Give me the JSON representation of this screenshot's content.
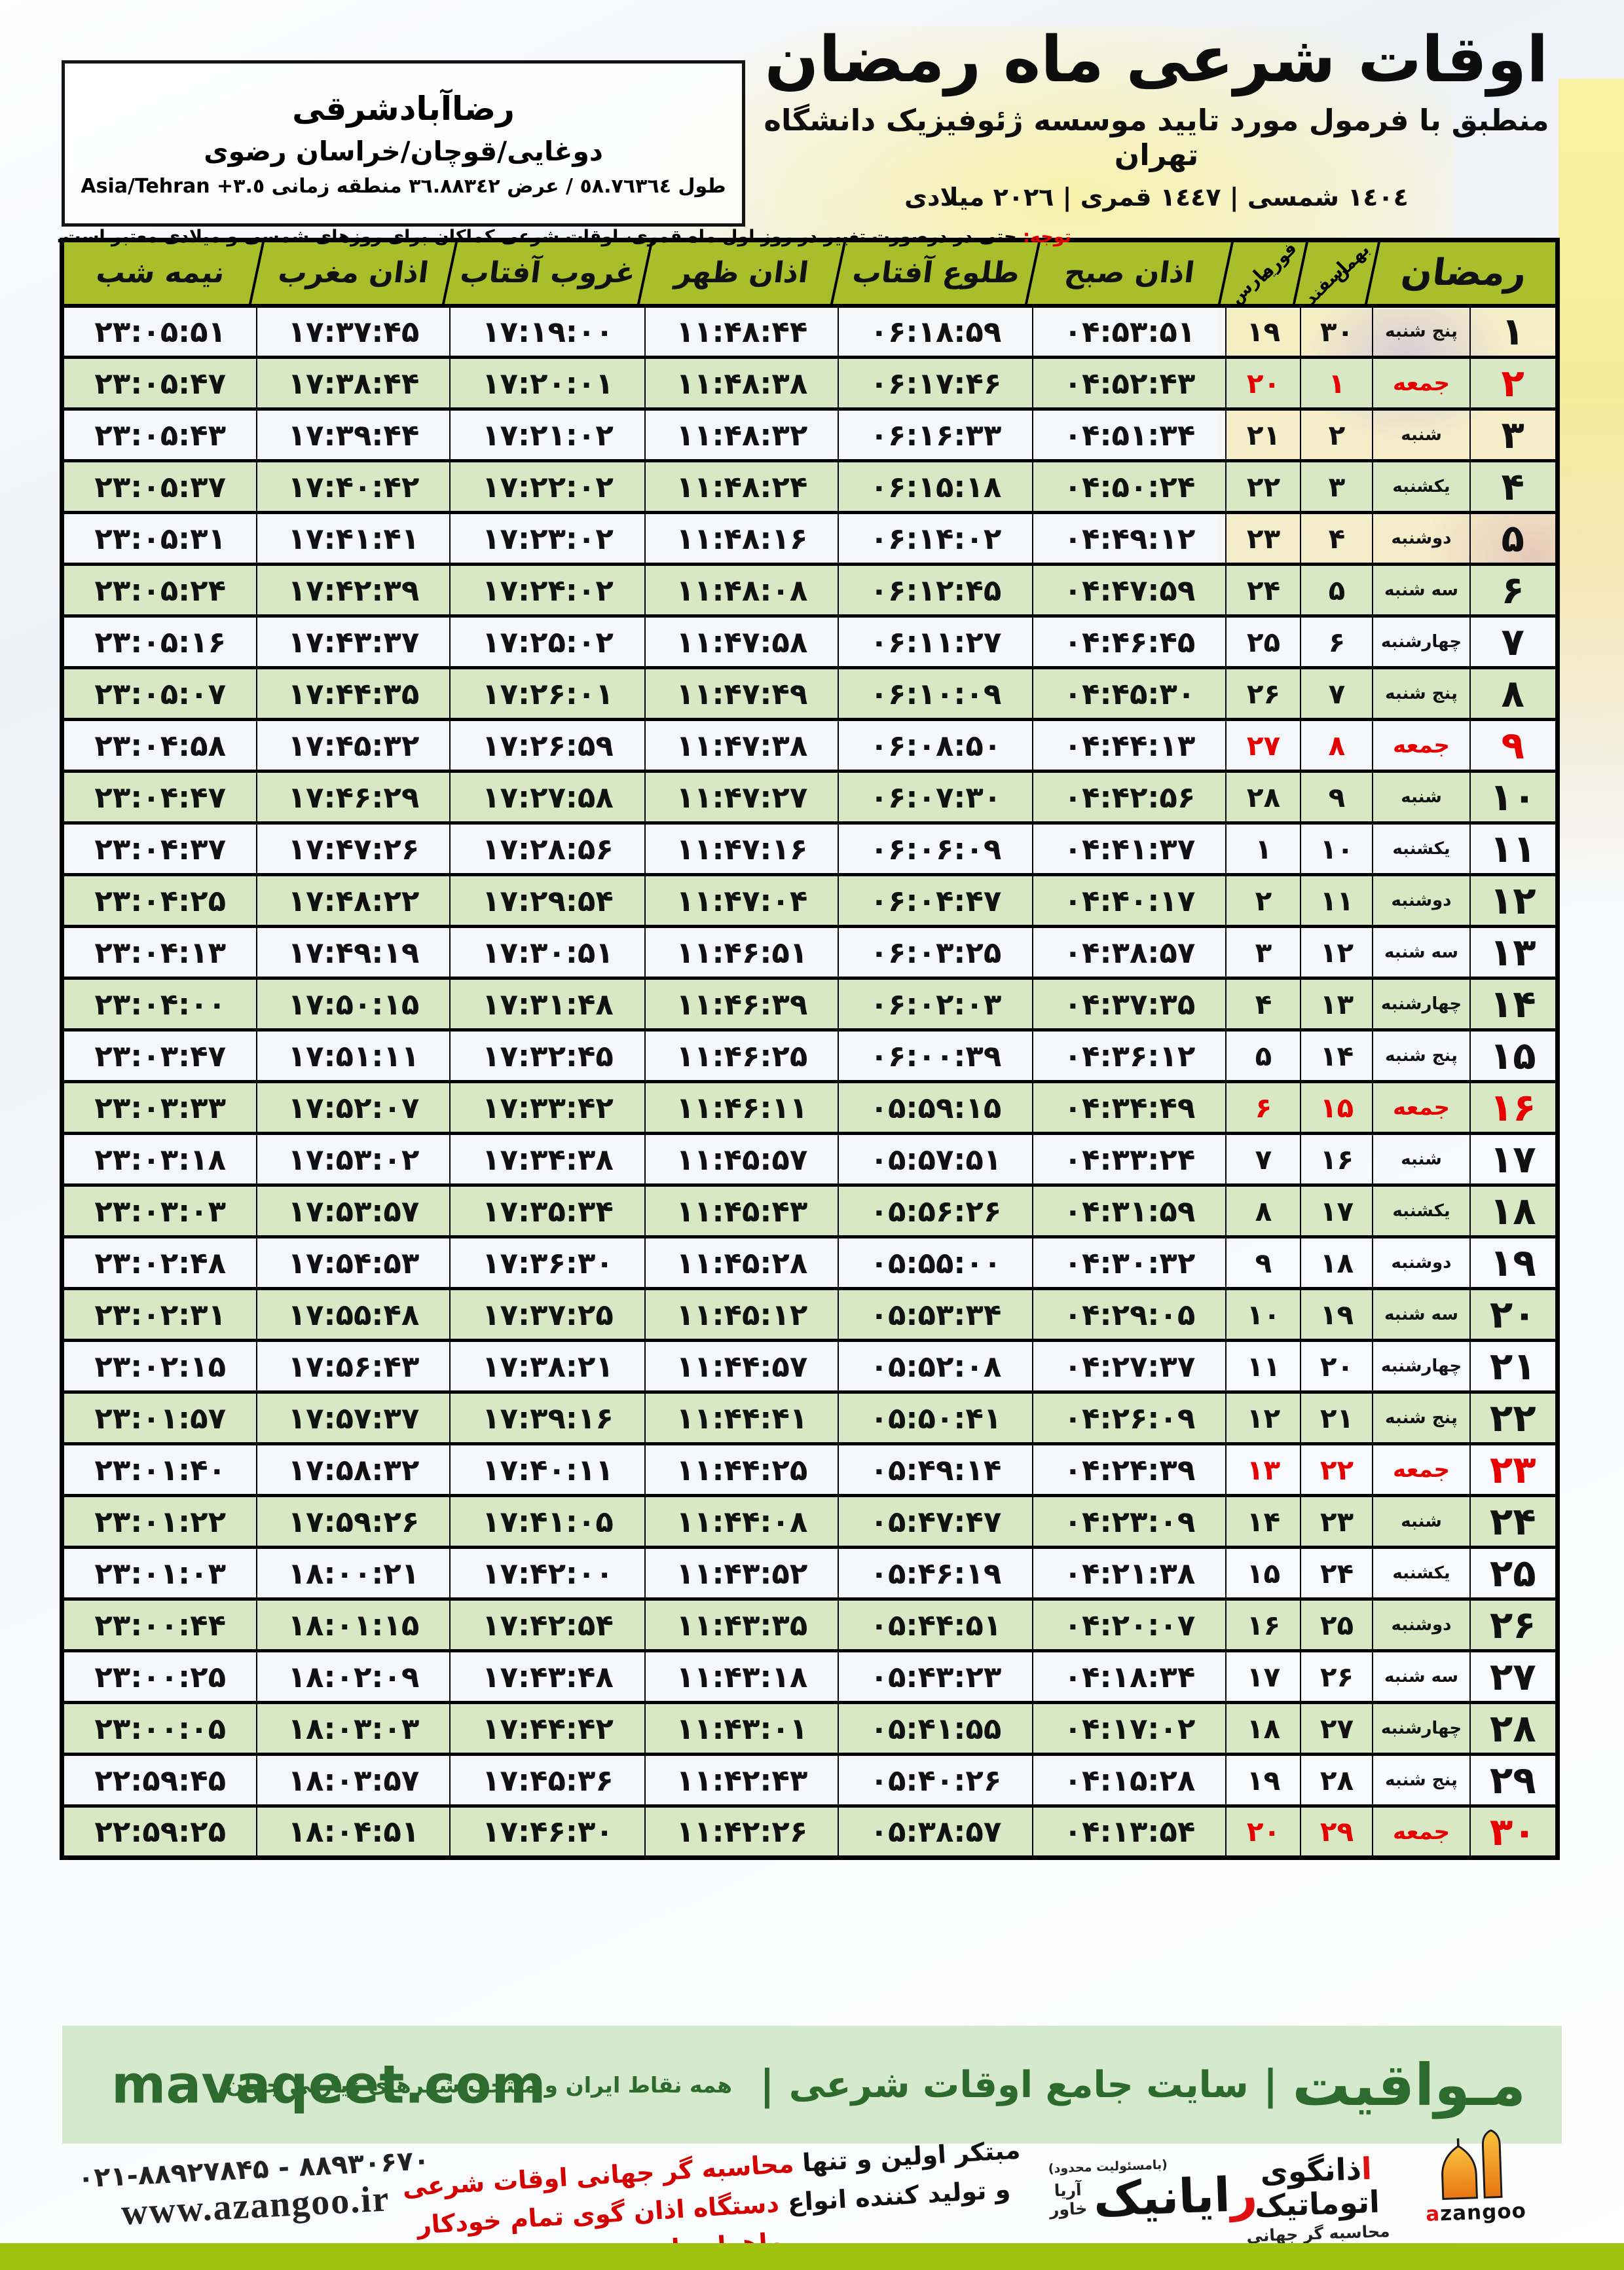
{
  "header": {
    "title": "اوقات شرعی ماه رمضان",
    "subtitle": "منطبق با فرمول مورد تایید موسسه ژئوفیزیک دانشگاه تهران",
    "year_line": "١٤٠٤ شمسی | ١٤٤٧ قمری | ٢٠٢٦ میلادی"
  },
  "location": {
    "name": "رضاآبادشرقی",
    "region": "دوغایی/قوچان/خراسان رضوی",
    "coords": "طول ٥٨.٧٦٣٦٤ / عرض ٣٦.٨٨٣٤٢ منطقه زمانی",
    "timezone": "Asia/Tehran +٣.٥"
  },
  "notice": {
    "label": "توجه:",
    "text": " حتی در درصورت تغییر در روز اول ماه قمری، اوقات شرعی کماکان برای روزهای شمسی و میلادی معتبر است."
  },
  "table": {
    "col_ramadan": "رمضان",
    "col_solar": {
      "top": "بهمن",
      "bottom": "اسفند"
    },
    "col_greg": {
      "top": "فوریه",
      "bottom": "مارس"
    },
    "col_fajr": "اذان صبح",
    "col_sunrise": "طلوع آفتاب",
    "col_dhuhr": "اذان ظهر",
    "col_sunset": "غروب آفتاب",
    "col_maghrib": "اذان مغرب",
    "col_midnight": "نیمه شب",
    "rows": [
      {
        "d": "۱",
        "w": "پنج شنبه",
        "e": "۳۰",
        "m": "۱۹",
        "fajr": "۰۴:۵۳:۵۱",
        "rise": "۰۶:۱۸:۵۹",
        "noon": "۱۱:۴۸:۴۴",
        "set": "۱۷:۱۹:۰۰",
        "magh": "۱۷:۳۷:۴۵",
        "mid": "۲۳:۰۵:۵۱",
        "fri": false
      },
      {
        "d": "۲",
        "w": "جمعه",
        "e": "۱",
        "m": "۲۰",
        "fajr": "۰۴:۵۲:۴۳",
        "rise": "۰۶:۱۷:۴۶",
        "noon": "۱۱:۴۸:۳۸",
        "set": "۱۷:۲۰:۰۱",
        "magh": "۱۷:۳۸:۴۴",
        "mid": "۲۳:۰۵:۴۷",
        "fri": true
      },
      {
        "d": "۳",
        "w": "شنبه",
        "e": "۲",
        "m": "۲۱",
        "fajr": "۰۴:۵۱:۳۴",
        "rise": "۰۶:۱۶:۳۳",
        "noon": "۱۱:۴۸:۳۲",
        "set": "۱۷:۲۱:۰۲",
        "magh": "۱۷:۳۹:۴۴",
        "mid": "۲۳:۰۵:۴۳",
        "fri": false
      },
      {
        "d": "۴",
        "w": "یکشنبه",
        "e": "۳",
        "m": "۲۲",
        "fajr": "۰۴:۵۰:۲۴",
        "rise": "۰۶:۱۵:۱۸",
        "noon": "۱۱:۴۸:۲۴",
        "set": "۱۷:۲۲:۰۲",
        "magh": "۱۷:۴۰:۴۲",
        "mid": "۲۳:۰۵:۳۷",
        "fri": false
      },
      {
        "d": "۵",
        "w": "دوشنبه",
        "e": "۴",
        "m": "۲۳",
        "fajr": "۰۴:۴۹:۱۲",
        "rise": "۰۶:۱۴:۰۲",
        "noon": "۱۱:۴۸:۱۶",
        "set": "۱۷:۲۳:۰۲",
        "magh": "۱۷:۴۱:۴۱",
        "mid": "۲۳:۰۵:۳۱",
        "fri": false
      },
      {
        "d": "۶",
        "w": "سه شنبه",
        "e": "۵",
        "m": "۲۴",
        "fajr": "۰۴:۴۷:۵۹",
        "rise": "۰۶:۱۲:۴۵",
        "noon": "۱۱:۴۸:۰۸",
        "set": "۱۷:۲۴:۰۲",
        "magh": "۱۷:۴۲:۳۹",
        "mid": "۲۳:۰۵:۲۴",
        "fri": false
      },
      {
        "d": "۷",
        "w": "چهارشنبه",
        "e": "۶",
        "m": "۲۵",
        "fajr": "۰۴:۴۶:۴۵",
        "rise": "۰۶:۱۱:۲۷",
        "noon": "۱۱:۴۷:۵۸",
        "set": "۱۷:۲۵:۰۲",
        "magh": "۱۷:۴۳:۳۷",
        "mid": "۲۳:۰۵:۱۶",
        "fri": false
      },
      {
        "d": "۸",
        "w": "پنج شنبه",
        "e": "۷",
        "m": "۲۶",
        "fajr": "۰۴:۴۵:۳۰",
        "rise": "۰۶:۱۰:۰۹",
        "noon": "۱۱:۴۷:۴۹",
        "set": "۱۷:۲۶:۰۱",
        "magh": "۱۷:۴۴:۳۵",
        "mid": "۲۳:۰۵:۰۷",
        "fri": false
      },
      {
        "d": "۹",
        "w": "جمعه",
        "e": "۸",
        "m": "۲۷",
        "fajr": "۰۴:۴۴:۱۳",
        "rise": "۰۶:۰۸:۵۰",
        "noon": "۱۱:۴۷:۳۸",
        "set": "۱۷:۲۶:۵۹",
        "magh": "۱۷:۴۵:۳۲",
        "mid": "۲۳:۰۴:۵۸",
        "fri": true
      },
      {
        "d": "۱۰",
        "w": "شنبه",
        "e": "۹",
        "m": "۲۸",
        "fajr": "۰۴:۴۲:۵۶",
        "rise": "۰۶:۰۷:۳۰",
        "noon": "۱۱:۴۷:۲۷",
        "set": "۱۷:۲۷:۵۸",
        "magh": "۱۷:۴۶:۲۹",
        "mid": "۲۳:۰۴:۴۷",
        "fri": false
      },
      {
        "d": "۱۱",
        "w": "یکشنبه",
        "e": "۱۰",
        "m": "۱",
        "fajr": "۰۴:۴۱:۳۷",
        "rise": "۰۶:۰۶:۰۹",
        "noon": "۱۱:۴۷:۱۶",
        "set": "۱۷:۲۸:۵۶",
        "magh": "۱۷:۴۷:۲۶",
        "mid": "۲۳:۰۴:۳۷",
        "fri": false
      },
      {
        "d": "۱۲",
        "w": "دوشنبه",
        "e": "۱۱",
        "m": "۲",
        "fajr": "۰۴:۴۰:۱۷",
        "rise": "۰۶:۰۴:۴۷",
        "noon": "۱۱:۴۷:۰۴",
        "set": "۱۷:۲۹:۵۴",
        "magh": "۱۷:۴۸:۲۲",
        "mid": "۲۳:۰۴:۲۵",
        "fri": false
      },
      {
        "d": "۱۳",
        "w": "سه شنبه",
        "e": "۱۲",
        "m": "۳",
        "fajr": "۰۴:۳۸:۵۷",
        "rise": "۰۶:۰۳:۲۵",
        "noon": "۱۱:۴۶:۵۱",
        "set": "۱۷:۳۰:۵۱",
        "magh": "۱۷:۴۹:۱۹",
        "mid": "۲۳:۰۴:۱۳",
        "fri": false
      },
      {
        "d": "۱۴",
        "w": "چهارشنبه",
        "e": "۱۳",
        "m": "۴",
        "fajr": "۰۴:۳۷:۳۵",
        "rise": "۰۶:۰۲:۰۳",
        "noon": "۱۱:۴۶:۳۹",
        "set": "۱۷:۳۱:۴۸",
        "magh": "۱۷:۵۰:۱۵",
        "mid": "۲۳:۰۴:۰۰",
        "fri": false
      },
      {
        "d": "۱۵",
        "w": "پنج شنبه",
        "e": "۱۴",
        "m": "۵",
        "fajr": "۰۴:۳۶:۱۲",
        "rise": "۰۶:۰۰:۳۹",
        "noon": "۱۱:۴۶:۲۵",
        "set": "۱۷:۳۲:۴۵",
        "magh": "۱۷:۵۱:۱۱",
        "mid": "۲۳:۰۳:۴۷",
        "fri": false
      },
      {
        "d": "۱۶",
        "w": "جمعه",
        "e": "۱۵",
        "m": "۶",
        "fajr": "۰۴:۳۴:۴۹",
        "rise": "۰۵:۵۹:۱۵",
        "noon": "۱۱:۴۶:۱۱",
        "set": "۱۷:۳۳:۴۲",
        "magh": "۱۷:۵۲:۰۷",
        "mid": "۲۳:۰۳:۳۳",
        "fri": true
      },
      {
        "d": "۱۷",
        "w": "شنبه",
        "e": "۱۶",
        "m": "۷",
        "fajr": "۰۴:۳۳:۲۴",
        "rise": "۰۵:۵۷:۵۱",
        "noon": "۱۱:۴۵:۵۷",
        "set": "۱۷:۳۴:۳۸",
        "magh": "۱۷:۵۳:۰۲",
        "mid": "۲۳:۰۳:۱۸",
        "fri": false
      },
      {
        "d": "۱۸",
        "w": "یکشنبه",
        "e": "۱۷",
        "m": "۸",
        "fajr": "۰۴:۳۱:۵۹",
        "rise": "۰۵:۵۶:۲۶",
        "noon": "۱۱:۴۵:۴۳",
        "set": "۱۷:۳۵:۳۴",
        "magh": "۱۷:۵۳:۵۷",
        "mid": "۲۳:۰۳:۰۳",
        "fri": false
      },
      {
        "d": "۱۹",
        "w": "دوشنبه",
        "e": "۱۸",
        "m": "۹",
        "fajr": "۰۴:۳۰:۳۲",
        "rise": "۰۵:۵۵:۰۰",
        "noon": "۱۱:۴۵:۲۸",
        "set": "۱۷:۳۶:۳۰",
        "magh": "۱۷:۵۴:۵۳",
        "mid": "۲۳:۰۲:۴۸",
        "fri": false
      },
      {
        "d": "۲۰",
        "w": "سه شنبه",
        "e": "۱۹",
        "m": "۱۰",
        "fajr": "۰۴:۲۹:۰۵",
        "rise": "۰۵:۵۳:۳۴",
        "noon": "۱۱:۴۵:۱۲",
        "set": "۱۷:۳۷:۲۵",
        "magh": "۱۷:۵۵:۴۸",
        "mid": "۲۳:۰۲:۳۱",
        "fri": false
      },
      {
        "d": "۲۱",
        "w": "چهارشنبه",
        "e": "۲۰",
        "m": "۱۱",
        "fajr": "۰۴:۲۷:۳۷",
        "rise": "۰۵:۵۲:۰۸",
        "noon": "۱۱:۴۴:۵۷",
        "set": "۱۷:۳۸:۲۱",
        "magh": "۱۷:۵۶:۴۳",
        "mid": "۲۳:۰۲:۱۵",
        "fri": false
      },
      {
        "d": "۲۲",
        "w": "پنج شنبه",
        "e": "۲۱",
        "m": "۱۲",
        "fajr": "۰۴:۲۶:۰۹",
        "rise": "۰۵:۵۰:۴۱",
        "noon": "۱۱:۴۴:۴۱",
        "set": "۱۷:۳۹:۱۶",
        "magh": "۱۷:۵۷:۳۷",
        "mid": "۲۳:۰۱:۵۷",
        "fri": false
      },
      {
        "d": "۲۳",
        "w": "جمعه",
        "e": "۲۲",
        "m": "۱۳",
        "fajr": "۰۴:۲۴:۳۹",
        "rise": "۰۵:۴۹:۱۴",
        "noon": "۱۱:۴۴:۲۵",
        "set": "۱۷:۴۰:۱۱",
        "magh": "۱۷:۵۸:۳۲",
        "mid": "۲۳:۰۱:۴۰",
        "fri": true
      },
      {
        "d": "۲۴",
        "w": "شنبه",
        "e": "۲۳",
        "m": "۱۴",
        "fajr": "۰۴:۲۳:۰۹",
        "rise": "۰۵:۴۷:۴۷",
        "noon": "۱۱:۴۴:۰۸",
        "set": "۱۷:۴۱:۰۵",
        "magh": "۱۷:۵۹:۲۶",
        "mid": "۲۳:۰۱:۲۲",
        "fri": false
      },
      {
        "d": "۲۵",
        "w": "یکشنبه",
        "e": "۲۴",
        "m": "۱۵",
        "fajr": "۰۴:۲۱:۳۸",
        "rise": "۰۵:۴۶:۱۹",
        "noon": "۱۱:۴۳:۵۲",
        "set": "۱۷:۴۲:۰۰",
        "magh": "۱۸:۰۰:۲۱",
        "mid": "۲۳:۰۱:۰۳",
        "fri": false
      },
      {
        "d": "۲۶",
        "w": "دوشنبه",
        "e": "۲۵",
        "m": "۱۶",
        "fajr": "۰۴:۲۰:۰۷",
        "rise": "۰۵:۴۴:۵۱",
        "noon": "۱۱:۴۳:۳۵",
        "set": "۱۷:۴۲:۵۴",
        "magh": "۱۸:۰۱:۱۵",
        "mid": "۲۳:۰۰:۴۴",
        "fri": false
      },
      {
        "d": "۲۷",
        "w": "سه شنبه",
        "e": "۲۶",
        "m": "۱۷",
        "fajr": "۰۴:۱۸:۳۴",
        "rise": "۰۵:۴۳:۲۳",
        "noon": "۱۱:۴۳:۱۸",
        "set": "۱۷:۴۳:۴۸",
        "magh": "۱۸:۰۲:۰۹",
        "mid": "۲۳:۰۰:۲۵",
        "fri": false
      },
      {
        "d": "۲۸",
        "w": "چهارشنبه",
        "e": "۲۷",
        "m": "۱۸",
        "fajr": "۰۴:۱۷:۰۲",
        "rise": "۰۵:۴۱:۵۵",
        "noon": "۱۱:۴۳:۰۱",
        "set": "۱۷:۴۴:۴۲",
        "magh": "۱۸:۰۳:۰۳",
        "mid": "۲۳:۰۰:۰۵",
        "fri": false
      },
      {
        "d": "۲۹",
        "w": "پنج شنبه",
        "e": "۲۸",
        "m": "۱۹",
        "fajr": "۰۴:۱۵:۲۸",
        "rise": "۰۵:۴۰:۲۶",
        "noon": "۱۱:۴۲:۴۳",
        "set": "۱۷:۴۵:۳۶",
        "magh": "۱۸:۰۳:۵۷",
        "mid": "۲۲:۵۹:۴۵",
        "fri": false
      },
      {
        "d": "۳۰",
        "w": "جمعه",
        "e": "۲۹",
        "m": "۲۰",
        "fajr": "۰۴:۱۳:۵۴",
        "rise": "۰۵:۳۸:۵۷",
        "noon": "۱۱:۴۲:۲۶",
        "set": "۱۷:۴۶:۳۰",
        "magh": "۱۸:۰۴:۵۱",
        "mid": "۲۲:۵۹:۲۵",
        "fri": true
      }
    ]
  },
  "mavaqeet": {
    "brand": "مـواقیت",
    "sep": "|",
    "tagline": "سایت جامع اوقات شرعی",
    "subtitle": "همه نقاط ایران و منتخب شهرهای زیارتی جهان",
    "site": "mavaqeet.com"
  },
  "footer": {
    "phones": "۰۲۱-۸۸۹۲۷۸۴۵ - ۸۸۹۳۰۶۷۰",
    "website": "www.azangoo.ir",
    "line1_black": "مبتکر اولین و تنها ",
    "line1_red": "محاسبه گر جهانی اوقات شرعی",
    "line2_black": "و تولید کننده انواع ",
    "line2_red": "دستگاه اذان گوی تمام خودکار ماهواره ای",
    "rayanik_note": "(بامسئولیت محدود)",
    "rayanik_first": "ر",
    "rayanik_rest": "ایانیک",
    "rayanik_sub1": "آریا",
    "rayanik_sub2": "خاور",
    "azangoo_latin_first": "a",
    "azangoo_latin_rest": "zangoo",
    "azangoo_title_first": "ا",
    "azangoo_title_rest": "ذانگوی اتوماتیک",
    "azangoo_sub": "محاسبه گر جهانی اوقات شرعی"
  },
  "colors": {
    "header_green": "#a8bf2b",
    "row_green": "#d9e8c4",
    "friday_red": "#e60000",
    "mav_bg": "#d5e9cc",
    "mav_text": "#2d6a2e",
    "bottom_bar": "#9fc30f"
  }
}
